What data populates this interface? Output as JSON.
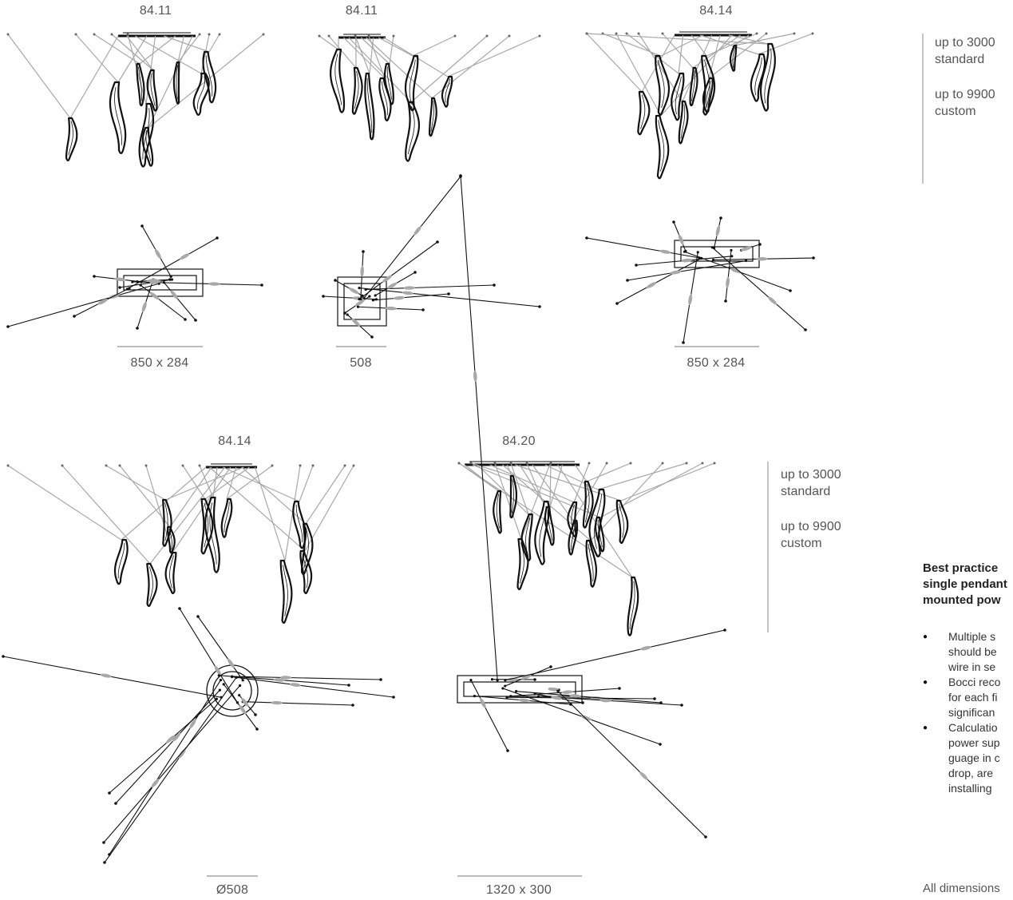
{
  "models": [
    {
      "model": "84.11",
      "dimension": "850 x 284"
    },
    {
      "model": "84.11",
      "dimension": "508"
    },
    {
      "model": "84.14",
      "dimension": "850 x 284"
    },
    {
      "model": "84.14",
      "dimension": "Ø508"
    },
    {
      "model": "84.20",
      "dimension": "1320 x 300"
    }
  ],
  "drop_spec_top": {
    "standard_value": "up to 3000",
    "standard_label": "standard",
    "custom_value": "up to 9900",
    "custom_label": "custom"
  },
  "drop_spec_bottom": {
    "standard_value": "up to 3000",
    "standard_label": "standard",
    "custom_value": "up to 9900",
    "custom_label": "custom"
  },
  "best_practice": {
    "title_lines": [
      "Best practice",
      "single pendant",
      "mounted pow"
    ],
    "bullets": [
      {
        "lines": [
          "Multiple s",
          "should be",
          "wire in se"
        ]
      },
      {
        "lines": [
          "Bocci reco",
          "for each fi",
          "significan"
        ]
      },
      {
        "lines": [
          "Calculatio",
          "power sup",
          "guage in c",
          "drop, are",
          "installing"
        ]
      }
    ]
  },
  "footer_note": "All dimensions",
  "colors": {
    "cable": "#a8a8a8",
    "line": "#111111",
    "text": "#555555"
  }
}
